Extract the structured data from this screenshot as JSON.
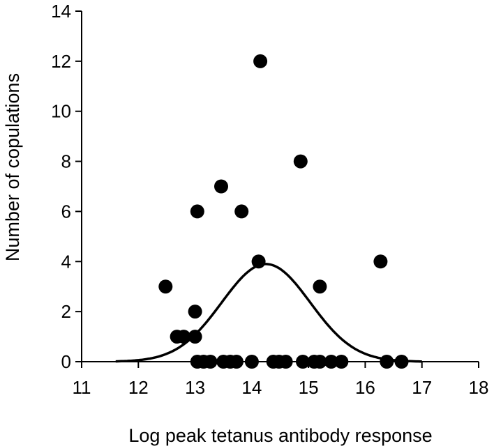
{
  "chart_data": {
    "type": "scatter",
    "title": "",
    "xlabel": "Log peak tetanus antibody response",
    "ylabel": "Number of copulations",
    "xlim": [
      11,
      18
    ],
    "ylim": [
      0,
      14
    ],
    "x_ticks": [
      11,
      12,
      13,
      14,
      15,
      16,
      17,
      18
    ],
    "y_ticks": [
      0,
      2,
      4,
      6,
      8,
      10,
      12,
      14
    ],
    "grid": false,
    "legend": "none",
    "colors": {
      "points": "#000000",
      "curve": "#000000",
      "axes": "#000000"
    },
    "series": [
      {
        "type": "scatter",
        "points": [
          {
            "x": 12.48,
            "y": 3
          },
          {
            "x": 12.68,
            "y": 1
          },
          {
            "x": 12.8,
            "y": 1
          },
          {
            "x": 13.0,
            "y": 2
          },
          {
            "x": 13.0,
            "y": 1
          },
          {
            "x": 13.04,
            "y": 6
          },
          {
            "x": 13.46,
            "y": 7
          },
          {
            "x": 13.82,
            "y": 6
          },
          {
            "x": 14.15,
            "y": 12
          },
          {
            "x": 14.12,
            "y": 4
          },
          {
            "x": 14.86,
            "y": 8
          },
          {
            "x": 15.2,
            "y": 3
          },
          {
            "x": 16.27,
            "y": 4
          },
          {
            "x": 13.04,
            "y": 0
          },
          {
            "x": 13.15,
            "y": 0
          },
          {
            "x": 13.27,
            "y": 0
          },
          {
            "x": 13.5,
            "y": 0
          },
          {
            "x": 13.62,
            "y": 0
          },
          {
            "x": 13.73,
            "y": 0
          },
          {
            "x": 14.0,
            "y": 0
          },
          {
            "x": 14.38,
            "y": 0
          },
          {
            "x": 14.48,
            "y": 0
          },
          {
            "x": 14.6,
            "y": 0
          },
          {
            "x": 14.9,
            "y": 0
          },
          {
            "x": 15.1,
            "y": 0
          },
          {
            "x": 15.2,
            "y": 0
          },
          {
            "x": 15.4,
            "y": 0
          },
          {
            "x": 15.58,
            "y": 0
          },
          {
            "x": 16.38,
            "y": 0
          },
          {
            "x": 16.64,
            "y": 0
          }
        ]
      },
      {
        "type": "line",
        "fit": "gaussian",
        "peak_x": 14.25,
        "peak_y": 3.9,
        "sigma": 0.78,
        "x_range": [
          11.6,
          17.0
        ]
      }
    ]
  }
}
